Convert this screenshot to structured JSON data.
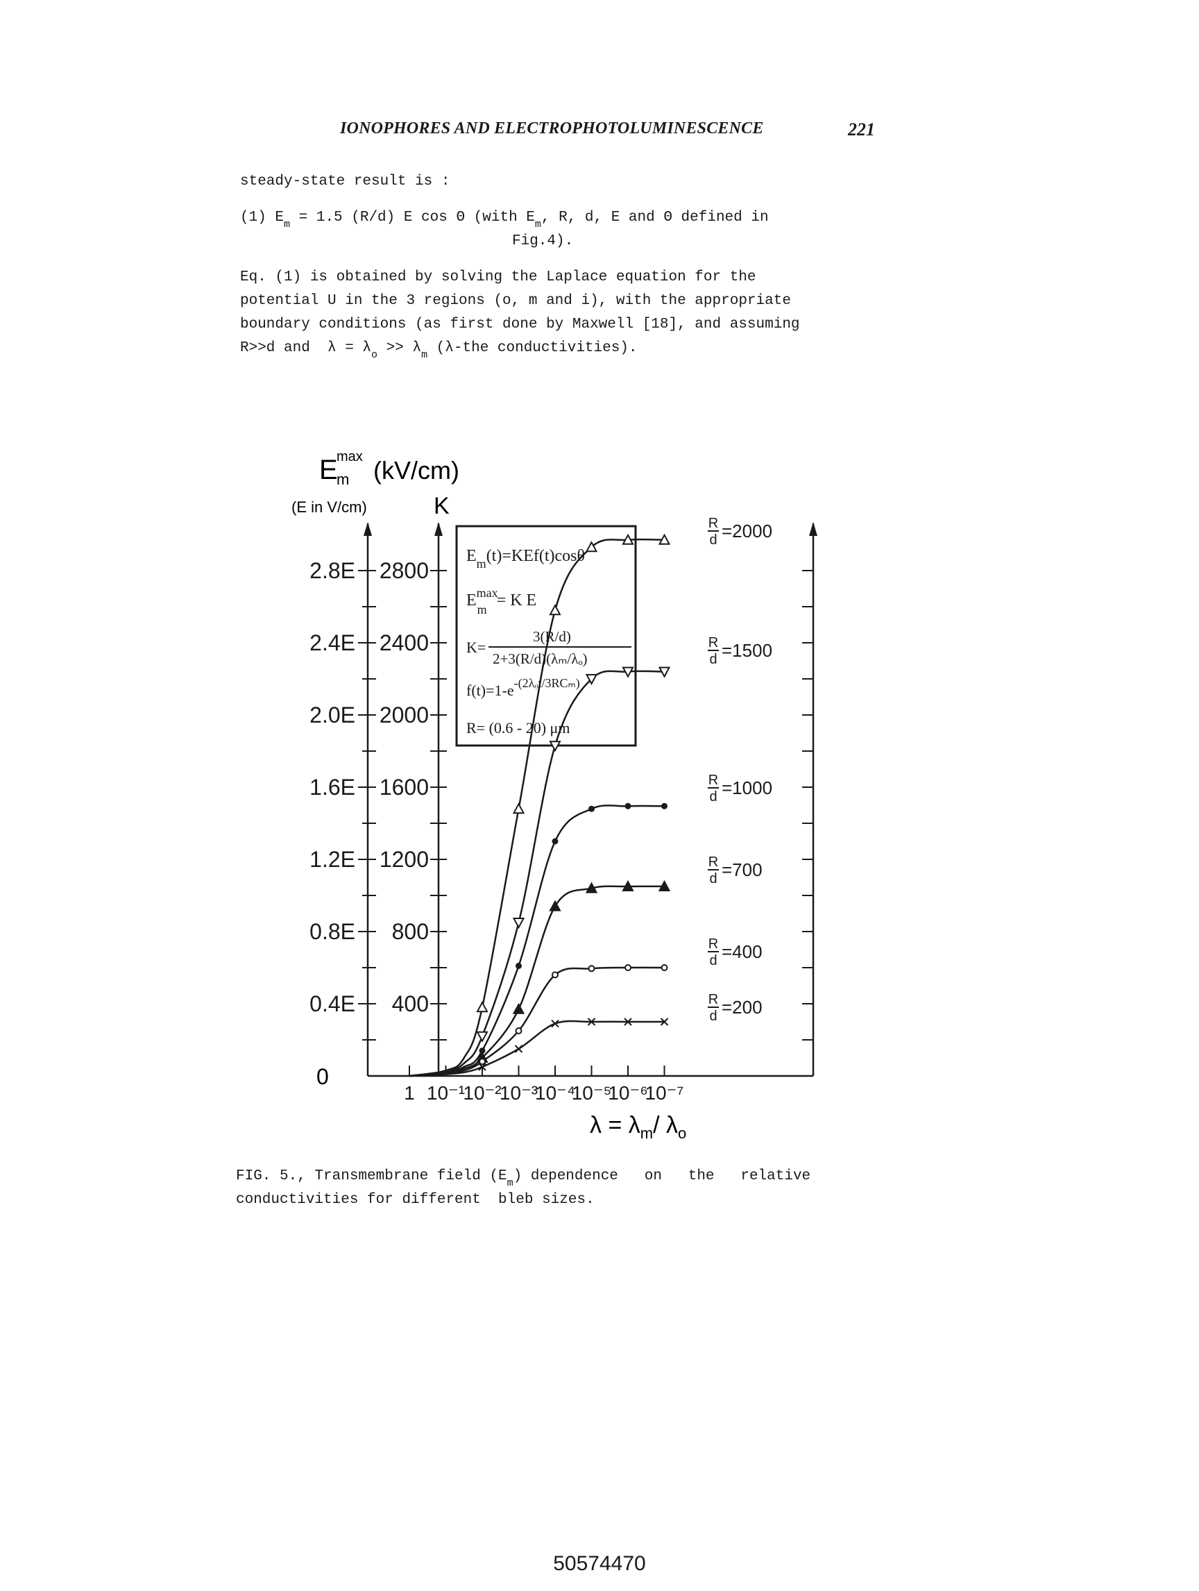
{
  "header": {
    "running_title": "IONOPHORES AND ELECTROPHOTOLUMINESCENCE",
    "page_number": "221"
  },
  "body": {
    "lead": "steady-state result is :",
    "eq_label": "(1) E",
    "eq_sub": "m",
    "eq_rest_a": " = 1.5 (R/d) E cos Θ (with E",
    "eq_rest_b": ", R, d, E and Θ defined in",
    "eq_cont": "Fig.4).",
    "para_l1": "Eq. (1) is obtained by solving the Laplace equation for the",
    "para_l2": "potential U in the 3 regions (o, m and i), with the appropriate",
    "para_l3": "boundary conditions (as first done by Maxwell [18], and assuming",
    "para_l4a": "R>>d and  λ = λ",
    "para_l4_sub_o": "o",
    "para_l4b": " >> λ",
    "para_l4_sub_m": "m",
    "para_l4c": " (λ-the conductivities)."
  },
  "figure": {
    "y_title_main": "E",
    "y_title_sup": "max",
    "y_title_sub": "m",
    "y_title_unit": " (kV/cm)",
    "y_title_note": "(E in V/cm)",
    "k_axis_title": "K",
    "origin_label": "0",
    "left_ticks": [
      "0.4E",
      "0.8E",
      "1.2E",
      "1.6E",
      "2.0E",
      "2.4E",
      "2.8E"
    ],
    "k_ticks": [
      "400",
      "800",
      "1200",
      "1600",
      "2000",
      "2400",
      "2800"
    ],
    "x_tick_labels": [
      "1",
      "10⁻¹",
      "10⁻²",
      "10⁻³",
      "10⁻⁴",
      "10⁻⁵",
      "10⁻⁶",
      "10⁻⁷"
    ],
    "x_title": "λ = λ",
    "x_title_sub_m": "m",
    "x_title_mid": "/ λ",
    "x_title_sub_o": "o",
    "box": {
      "l1": "E",
      "l1_sub": "m",
      "l1_rest": "(t)=KEf(t)cosθ",
      "l2": "E",
      "l2_sup": "max",
      "l2_sub": "m",
      "l2_rest": "= K E",
      "l3_k": "K=",
      "l3_num": "3(R/d)",
      "l3_den": "2+3(R/d)(λₘ/λₒ)",
      "l4": "f(t)=1-e",
      "l4_sup": "-(2λₒt/3RCₘ)",
      "l5": "R= (0.6 - 20) μm"
    },
    "curve_label_prefix": "R",
    "curve_label_denom": "d"
  },
  "chart_data": {
    "type": "line",
    "title": "",
    "xlabel": "λ = λm/ λo",
    "ylabel": "Em max (kV/cm) (E in V/cm)  K",
    "x": [
      "1",
      "10^-1",
      "10^-2",
      "10^-3",
      "10^-4",
      "10^-5",
      "10^-6",
      "10^-7"
    ],
    "x_log10": [
      0,
      -1,
      -2,
      -3,
      -4,
      -5,
      -6,
      -7
    ],
    "ylim": [
      0,
      3000
    ],
    "secondary_axis": "K (same scale, Em max = K E)",
    "series": [
      {
        "name": "R/d =2000",
        "marker": "triangle-up-open",
        "points": [
          [
            0,
            0
          ],
          [
            -1,
            30
          ],
          [
            -1.5,
            100
          ],
          [
            -2,
            380
          ],
          [
            -3,
            1480
          ],
          [
            -4,
            2580
          ],
          [
            -5,
            2930
          ],
          [
            -6,
            2970
          ],
          [
            -7,
            2970
          ]
        ]
      },
      {
        "name": "R/d =1500",
        "marker": "triangle-down-open",
        "points": [
          [
            0,
            0
          ],
          [
            -1,
            25
          ],
          [
            -1.5,
            70
          ],
          [
            -2,
            220
          ],
          [
            -3,
            850
          ],
          [
            -4,
            1830
          ],
          [
            -5,
            2200
          ],
          [
            -6,
            2240
          ],
          [
            -7,
            2240
          ]
        ]
      },
      {
        "name": "R/d =1000",
        "marker": "circle-filled",
        "points": [
          [
            0,
            0
          ],
          [
            -1,
            20
          ],
          [
            -1.5,
            50
          ],
          [
            -2,
            140
          ],
          [
            -3,
            610
          ],
          [
            -4,
            1300
          ],
          [
            -5,
            1480
          ],
          [
            -6,
            1495
          ],
          [
            -7,
            1495
          ]
        ]
      },
      {
        "name": "R/d =700",
        "marker": "triangle-up-filled",
        "points": [
          [
            0,
            0
          ],
          [
            -1,
            15
          ],
          [
            -1.5,
            40
          ],
          [
            -2,
            100
          ],
          [
            -3,
            370
          ],
          [
            -4,
            940
          ],
          [
            -5,
            1040
          ],
          [
            -6,
            1050
          ],
          [
            -7,
            1050
          ]
        ]
      },
      {
        "name": "R/d =400",
        "marker": "circle-open",
        "points": [
          [
            0,
            0
          ],
          [
            -1,
            12
          ],
          [
            -1.5,
            30
          ],
          [
            -2,
            80
          ],
          [
            -3,
            250
          ],
          [
            -4,
            560
          ],
          [
            -5,
            595
          ],
          [
            -6,
            600
          ],
          [
            -7,
            600
          ]
        ]
      },
      {
        "name": "R/d =200",
        "marker": "x",
        "points": [
          [
            0,
            0
          ],
          [
            -1,
            10
          ],
          [
            -1.5,
            20
          ],
          [
            -2,
            50
          ],
          [
            -3,
            150
          ],
          [
            -4,
            290
          ],
          [
            -5,
            300
          ],
          [
            -6,
            300
          ],
          [
            -7,
            300
          ]
        ]
      }
    ]
  },
  "caption": {
    "l1a": "FIG. 5., Transmembrane field (E",
    "l1_sub": "m",
    "l1b": ") dependence   on   the   relative",
    "l2": "conductivities for different  bleb sizes."
  },
  "footer": {
    "document_code": "50574470"
  }
}
